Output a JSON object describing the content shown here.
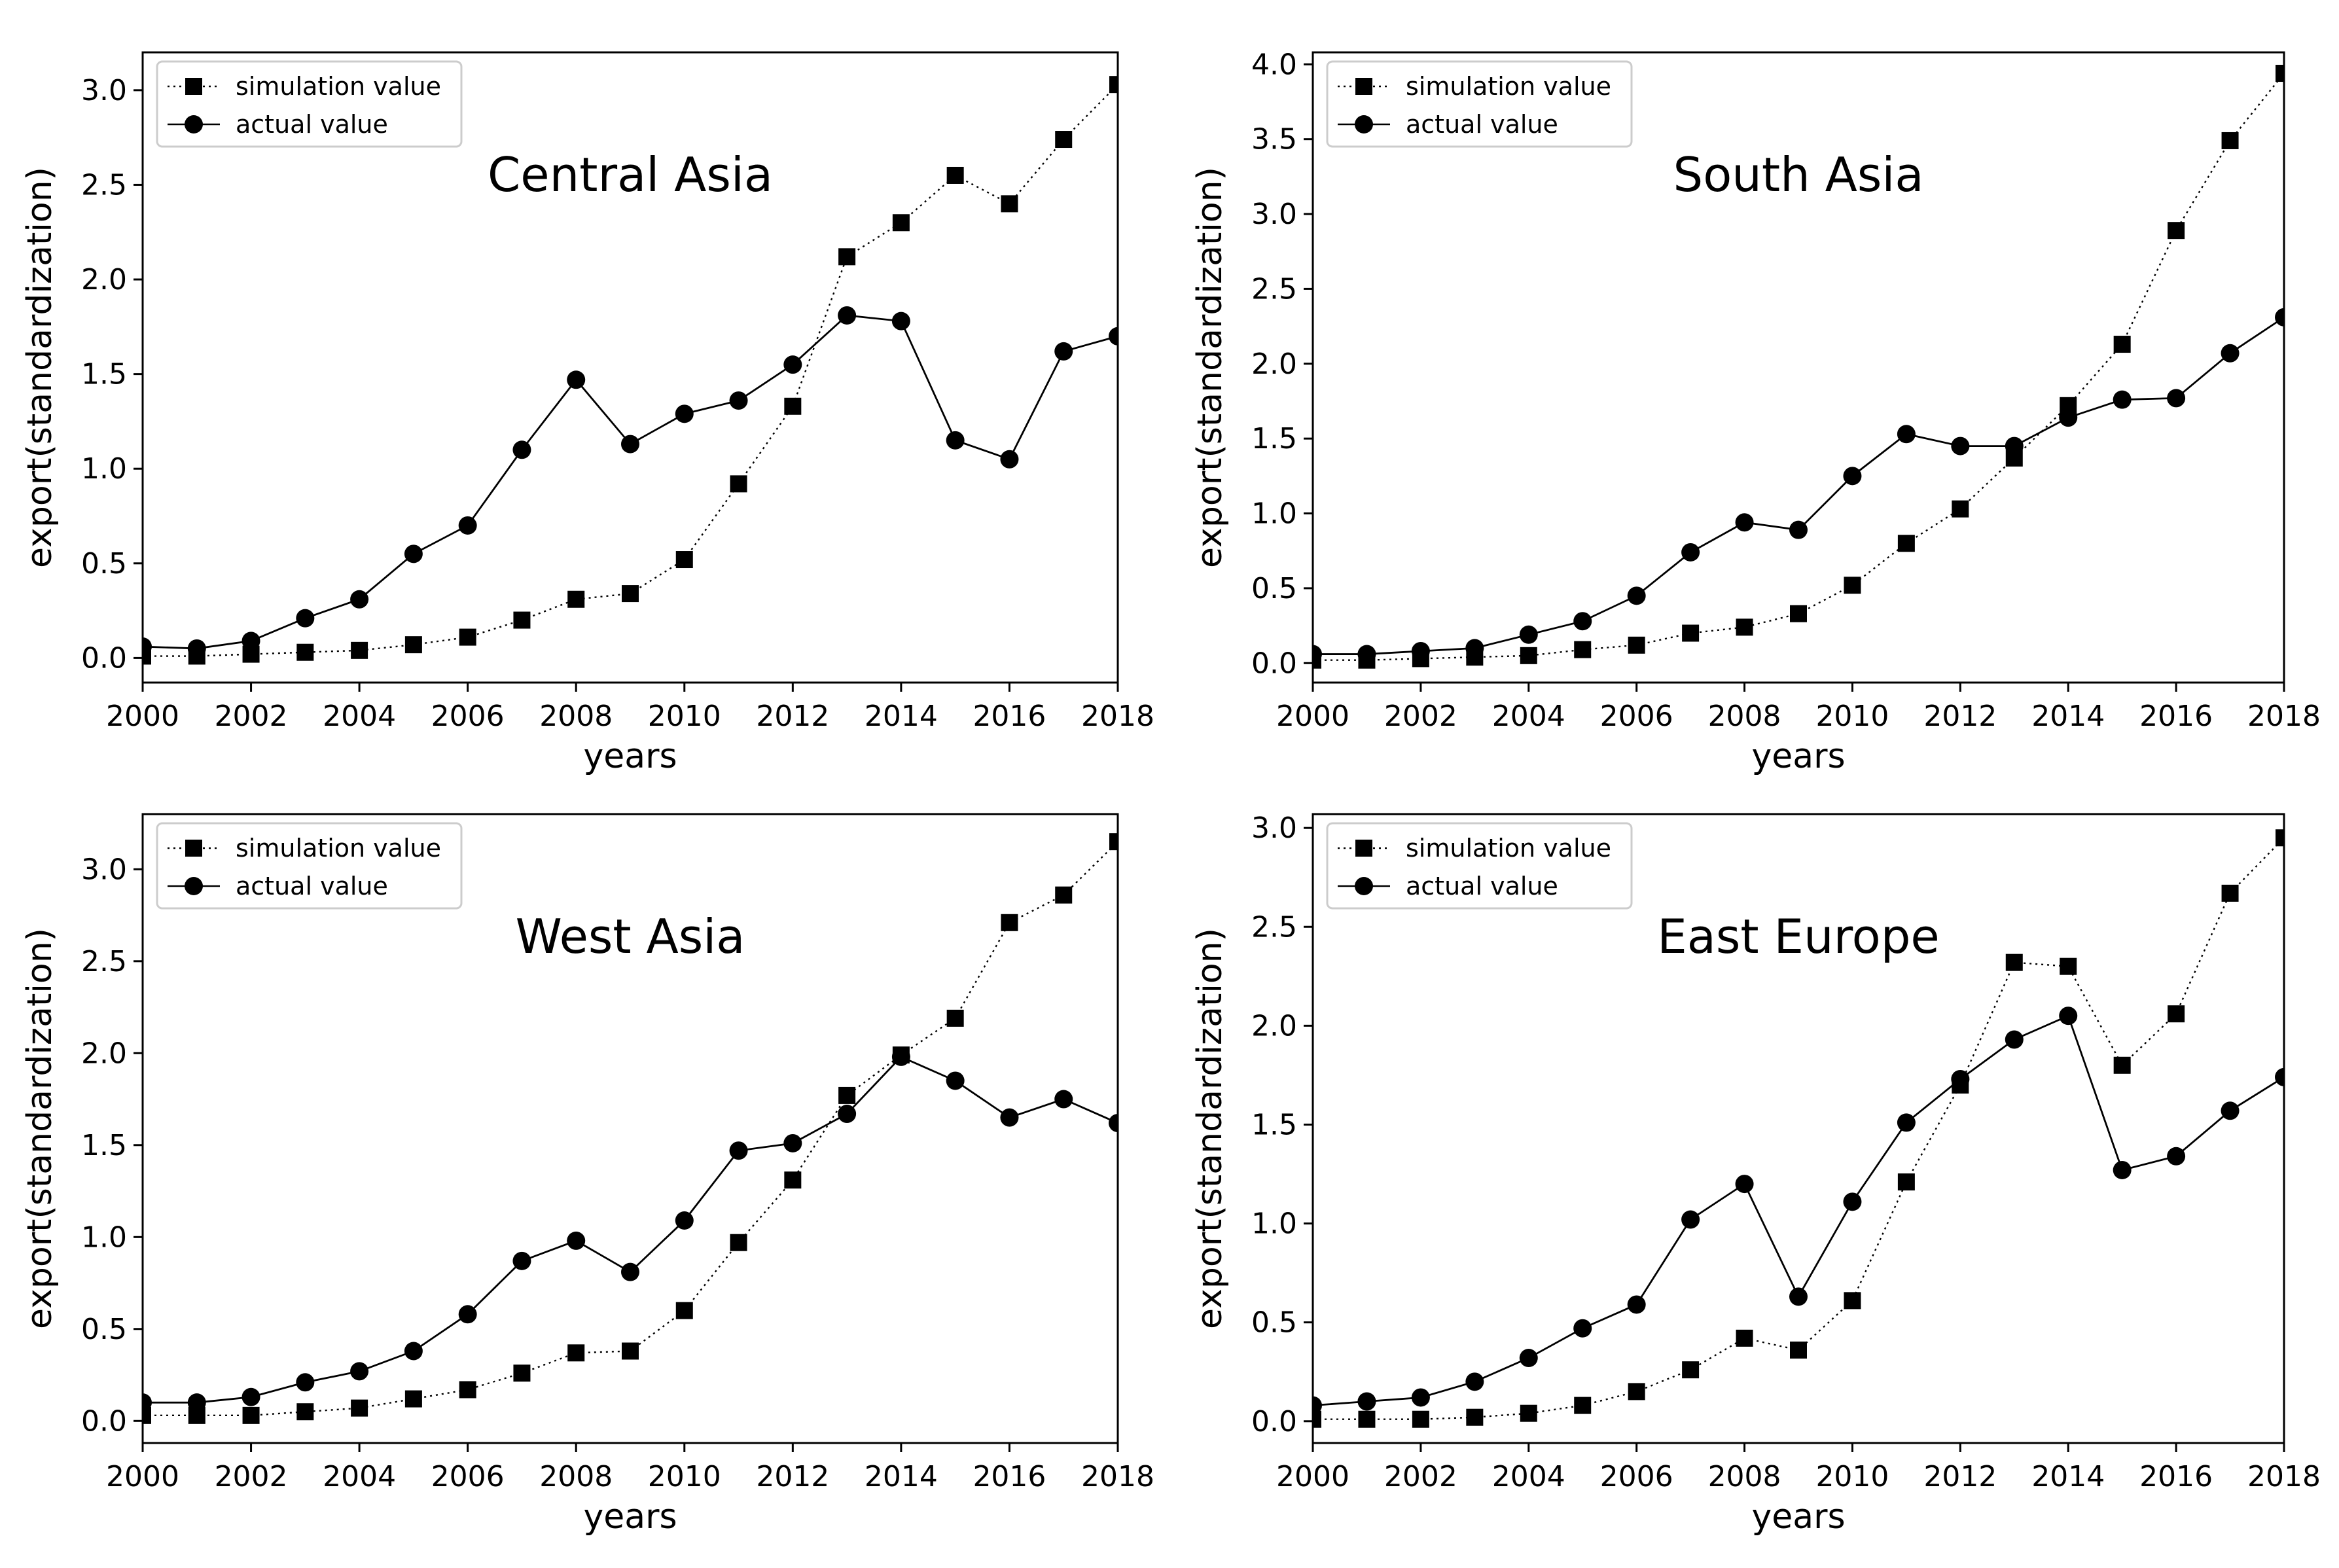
{
  "chart_data": [
    {
      "type": "line",
      "title": "Central Asia",
      "xlabel": "years",
      "ylabel": "export(standardization)",
      "xlim": [
        2000,
        2018
      ],
      "ylim": [
        -0.13,
        3.2
      ],
      "xticks": [
        2000,
        2002,
        2004,
        2006,
        2008,
        2010,
        2012,
        2014,
        2016,
        2018
      ],
      "yticks": [
        0.0,
        0.5,
        1.0,
        1.5,
        2.0,
        2.5,
        3.0
      ],
      "legend_position": "top-left",
      "x": [
        2000,
        2001,
        2002,
        2003,
        2004,
        2005,
        2006,
        2007,
        2008,
        2009,
        2010,
        2011,
        2012,
        2013,
        2014,
        2015,
        2016,
        2017,
        2018
      ],
      "series": [
        {
          "name": "simulation value",
          "marker": "square",
          "line": "dotted",
          "values": [
            0.01,
            0.01,
            0.02,
            0.03,
            0.04,
            0.07,
            0.11,
            0.2,
            0.31,
            0.34,
            0.52,
            0.92,
            1.33,
            2.12,
            2.3,
            2.55,
            2.4,
            2.74,
            3.03
          ]
        },
        {
          "name": "actual value",
          "marker": "circle",
          "line": "solid",
          "values": [
            0.06,
            0.05,
            0.09,
            0.21,
            0.31,
            0.55,
            0.7,
            1.1,
            1.47,
            1.13,
            1.29,
            1.36,
            1.55,
            1.81,
            1.78,
            1.15,
            1.05,
            1.62,
            1.7
          ]
        }
      ]
    },
    {
      "type": "line",
      "title": "South Asia",
      "xlabel": "years",
      "ylabel": "export(standardization)",
      "xlim": [
        2000,
        2018
      ],
      "ylim": [
        -0.13,
        4.08
      ],
      "xticks": [
        2000,
        2002,
        2004,
        2006,
        2008,
        2010,
        2012,
        2014,
        2016,
        2018
      ],
      "yticks": [
        0.0,
        0.5,
        1.0,
        1.5,
        2.0,
        2.5,
        3.0,
        3.5,
        4.0
      ],
      "legend_position": "top-left",
      "x": [
        2000,
        2001,
        2002,
        2003,
        2004,
        2005,
        2006,
        2007,
        2008,
        2009,
        2010,
        2011,
        2012,
        2013,
        2014,
        2015,
        2016,
        2017,
        2018
      ],
      "series": [
        {
          "name": "simulation value",
          "marker": "square",
          "line": "dotted",
          "values": [
            0.02,
            0.02,
            0.03,
            0.04,
            0.05,
            0.09,
            0.12,
            0.2,
            0.24,
            0.33,
            0.52,
            0.8,
            1.03,
            1.37,
            1.72,
            2.13,
            2.89,
            3.49,
            3.94
          ]
        },
        {
          "name": "actual value",
          "marker": "circle",
          "line": "solid",
          "values": [
            0.06,
            0.06,
            0.08,
            0.1,
            0.19,
            0.28,
            0.45,
            0.74,
            0.94,
            0.89,
            1.25,
            1.53,
            1.45,
            1.45,
            1.64,
            1.76,
            1.77,
            2.07,
            2.31
          ]
        }
      ]
    },
    {
      "type": "line",
      "title": "West Asia",
      "xlabel": "years",
      "ylabel": "export(standardization)",
      "xlim": [
        2000,
        2018
      ],
      "ylim": [
        -0.12,
        3.3
      ],
      "xticks": [
        2000,
        2002,
        2004,
        2006,
        2008,
        2010,
        2012,
        2014,
        2016,
        2018
      ],
      "yticks": [
        0.0,
        0.5,
        1.0,
        1.5,
        2.0,
        2.5,
        3.0
      ],
      "legend_position": "top-left",
      "x": [
        2000,
        2001,
        2002,
        2003,
        2004,
        2005,
        2006,
        2007,
        2008,
        2009,
        2010,
        2011,
        2012,
        2013,
        2014,
        2015,
        2016,
        2017,
        2018
      ],
      "series": [
        {
          "name": "simulation value",
          "marker": "square",
          "line": "dotted",
          "values": [
            0.03,
            0.03,
            0.03,
            0.05,
            0.07,
            0.12,
            0.17,
            0.26,
            0.37,
            0.38,
            0.6,
            0.97,
            1.31,
            1.77,
            1.99,
            2.19,
            2.71,
            2.86,
            3.15
          ]
        },
        {
          "name": "actual value",
          "marker": "circle",
          "line": "solid",
          "values": [
            0.1,
            0.1,
            0.13,
            0.21,
            0.27,
            0.38,
            0.58,
            0.87,
            0.98,
            0.81,
            1.09,
            1.47,
            1.51,
            1.67,
            1.98,
            1.85,
            1.65,
            1.75,
            1.62
          ]
        }
      ]
    },
    {
      "type": "line",
      "title": "East Europe",
      "xlabel": "years",
      "ylabel": "export(standardization)",
      "xlim": [
        2000,
        2018
      ],
      "ylim": [
        -0.11,
        3.07
      ],
      "xticks": [
        2000,
        2002,
        2004,
        2006,
        2008,
        2010,
        2012,
        2014,
        2016,
        2018
      ],
      "yticks": [
        0.0,
        0.5,
        1.0,
        1.5,
        2.0,
        2.5,
        3.0
      ],
      "legend_position": "top-left",
      "x": [
        2000,
        2001,
        2002,
        2003,
        2004,
        2005,
        2006,
        2007,
        2008,
        2009,
        2010,
        2011,
        2012,
        2013,
        2014,
        2015,
        2016,
        2017,
        2018
      ],
      "series": [
        {
          "name": "simulation value",
          "marker": "square",
          "line": "dotted",
          "values": [
            0.01,
            0.01,
            0.01,
            0.02,
            0.04,
            0.08,
            0.15,
            0.26,
            0.42,
            0.36,
            0.61,
            1.21,
            1.7,
            2.32,
            2.3,
            1.8,
            2.06,
            2.67,
            2.95
          ]
        },
        {
          "name": "actual value",
          "marker": "circle",
          "line": "solid",
          "values": [
            0.08,
            0.1,
            0.12,
            0.2,
            0.32,
            0.47,
            0.59,
            1.02,
            1.2,
            0.63,
            1.11,
            1.51,
            1.73,
            1.93,
            2.05,
            1.27,
            1.34,
            1.57,
            1.74
          ]
        }
      ]
    }
  ]
}
